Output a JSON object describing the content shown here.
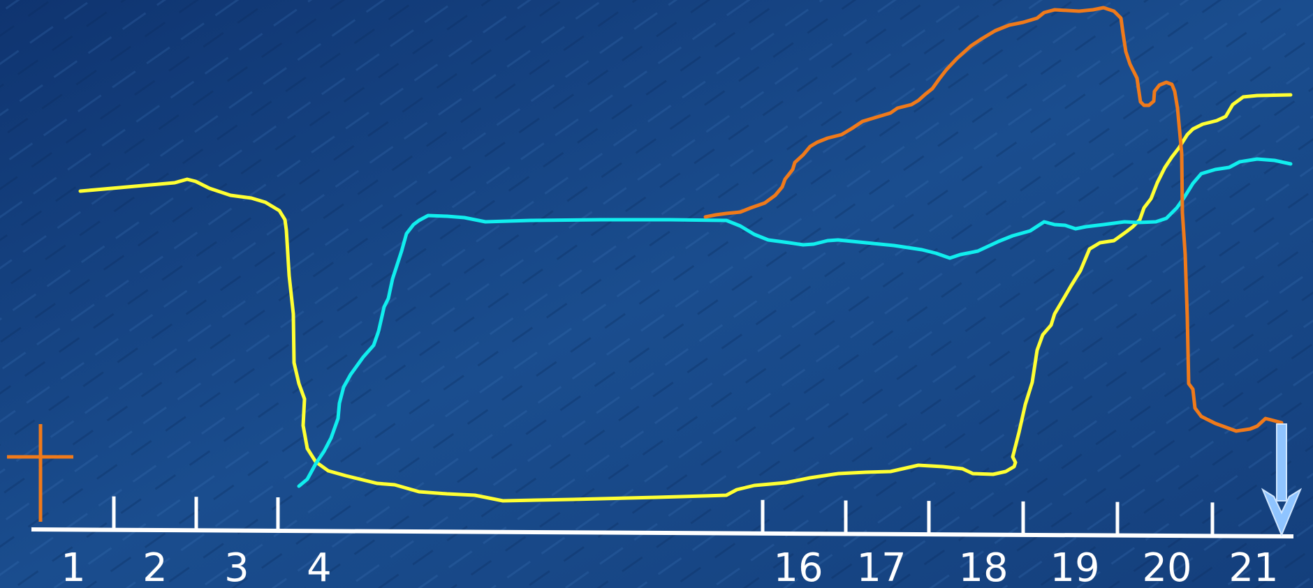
{
  "chart_data": {
    "type": "line",
    "x_tick_labels": [
      "1",
      "2",
      "3",
      "4",
      "16",
      "17",
      "18",
      "19",
      "20",
      "21"
    ],
    "grid": false,
    "legend": "none",
    "colors": {
      "background": "#123f7a",
      "axis": "#ffffff",
      "cross_marker": "#f07a1a",
      "end_arrow": "#8fc4ff"
    },
    "series": [
      {
        "color": "#ffff33"
      },
      {
        "color": "#11eeee"
      },
      {
        "color": "#f07a1a"
      }
    ]
  }
}
